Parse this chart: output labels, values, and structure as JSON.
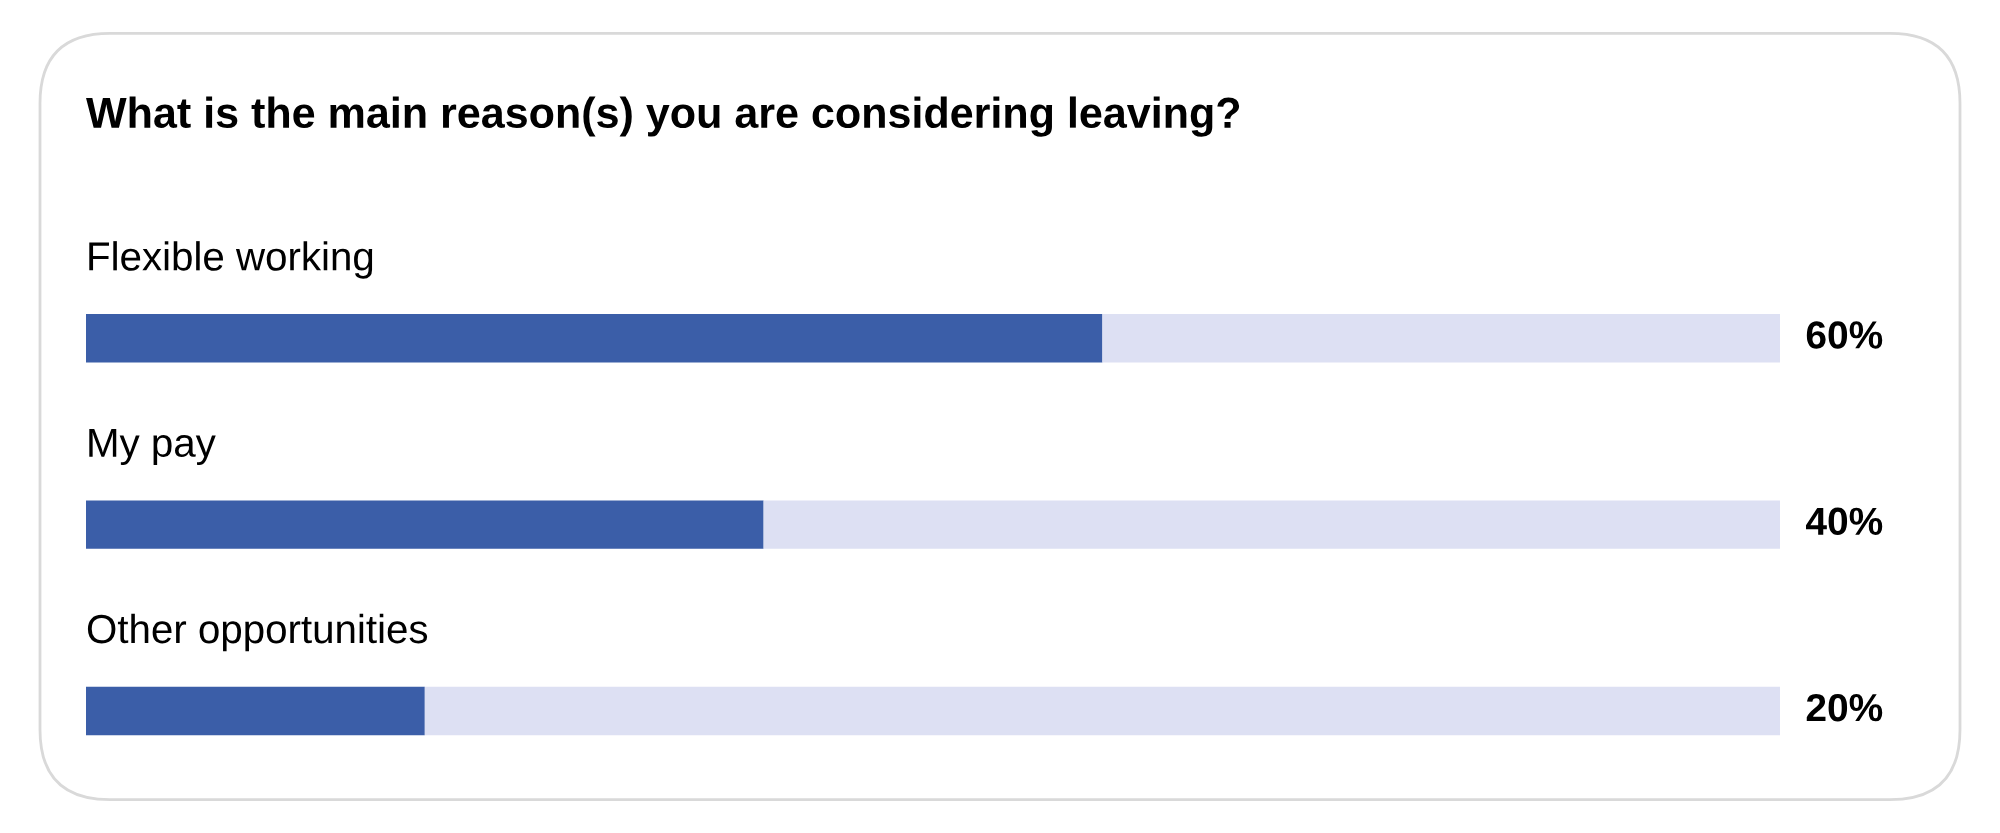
{
  "chart_data": {
    "type": "bar",
    "orientation": "horizontal",
    "stacked": true,
    "title": "What is the main reason(s) you are considering leaving?",
    "categories": [
      "Flexible working",
      "My pay",
      "Other opportunities"
    ],
    "series": [
      {
        "color": "#3b5ea8",
        "values": [
          60,
          40,
          20
        ],
        "value_labels": [
          "60%",
          "40%",
          "20%"
        ]
      },
      {
        "color": "#dde0f3",
        "values": [
          40,
          60,
          80
        ]
      }
    ],
    "xlim": [
      0,
      100
    ],
    "tick_labels": false
  }
}
